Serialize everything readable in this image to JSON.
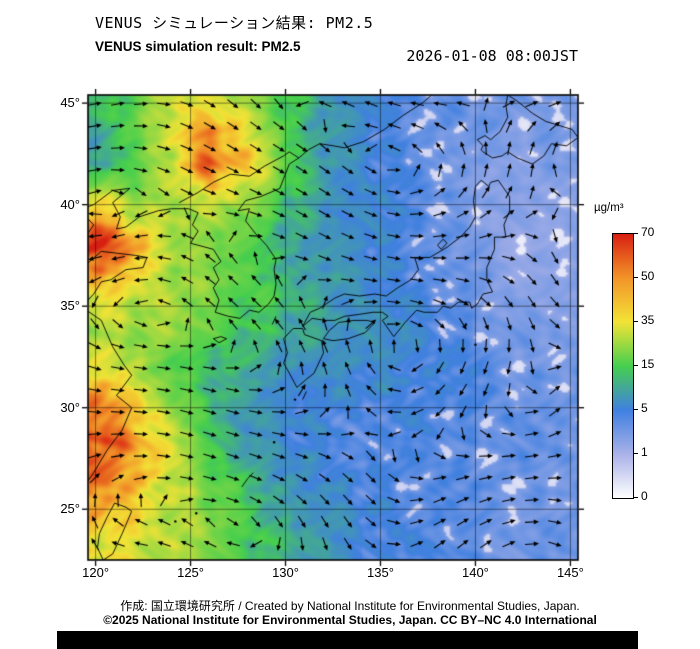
{
  "header": {
    "title_jp": "VENUS シミュレーション結果: PM2.5",
    "title_en": "VENUS simulation result: PM2.5",
    "timestamp": "2026-01-08 08:00JST"
  },
  "footer": {
    "credit": "作成: 国立環境研究所 / Created by National Institute for Environmental Studies, Japan.",
    "license": "©2025 National Institute for Environmental Studies, Japan. CC BY–NC 4.0 International"
  },
  "chart_data": {
    "type": "heatmap",
    "title": "VENUS simulation result: PM2.5",
    "variable": "PM2.5 concentration",
    "units": "µg/m³",
    "timestamp": "2026-01-08 08:00JST",
    "overlay": "wind vector arrows",
    "x_axis": {
      "label": "longitude",
      "ticks": [
        "120°",
        "125°",
        "130°",
        "135°",
        "140°",
        "145°"
      ],
      "tick_values": [
        120,
        125,
        130,
        135,
        140,
        145
      ],
      "range": [
        119.6,
        145.4
      ]
    },
    "y_axis": {
      "label": "latitude",
      "ticks": [
        "45°",
        "40°",
        "35°",
        "30°",
        "25°"
      ],
      "tick_values": [
        45,
        40,
        35,
        30,
        25
      ],
      "range": [
        22.5,
        45.4
      ]
    },
    "colorbar": {
      "label": "µg/m³",
      "tick_labels": [
        "0",
        "1",
        "5",
        "15",
        "35",
        "50",
        "70"
      ],
      "tick_values": [
        0,
        1,
        5,
        15,
        35,
        50,
        70
      ],
      "colors": [
        "#ffffff",
        "#a9b1e8",
        "#4080e0",
        "#46cf4e",
        "#f2e336",
        "#f29429",
        "#d81f12"
      ]
    },
    "grid": {
      "comment": "PM2.5 field (ug/m3) sampled on coarse grid; rows north-to-south",
      "lons": [
        120,
        122,
        124,
        126,
        128,
        130,
        132,
        134,
        136,
        138,
        140,
        142,
        144,
        146
      ],
      "lats": [
        46,
        44,
        42,
        40,
        38,
        36,
        34,
        32,
        30,
        28,
        26,
        24,
        22
      ],
      "values": [
        [
          14,
          18,
          28,
          30,
          22,
          14,
          9,
          6,
          4,
          3.5,
          3,
          3,
          3,
          3
        ],
        [
          10,
          16,
          34,
          48,
          30,
          16,
          9,
          6,
          4,
          3.5,
          3,
          2.5,
          3,
          3
        ],
        [
          9,
          14,
          30,
          58,
          40,
          18,
          9,
          6,
          4.5,
          3.5,
          2.5,
          2,
          2.5,
          3
        ],
        [
          38,
          26,
          24,
          32,
          24,
          13,
          8,
          6,
          4.5,
          3.5,
          2.5,
          2,
          2,
          2.5
        ],
        [
          68,
          45,
          28,
          22,
          16,
          11,
          8,
          6,
          5,
          3.5,
          2.5,
          1.5,
          2,
          2.5
        ],
        [
          40,
          32,
          26,
          22,
          16,
          13,
          9,
          7,
          5,
          4,
          3,
          2,
          2,
          2.5
        ],
        [
          28,
          26,
          24,
          20,
          14,
          11,
          9,
          8,
          6,
          4.5,
          3.5,
          2.5,
          2.5,
          2.5
        ],
        [
          30,
          26,
          18,
          12,
          10,
          8,
          7,
          6,
          6,
          5,
          4,
          3,
          3,
          3
        ],
        [
          55,
          40,
          24,
          12,
          8,
          6,
          5.5,
          5,
          5,
          4.5,
          4,
          3.5,
          3,
          3
        ],
        [
          65,
          52,
          30,
          15,
          9,
          6,
          5,
          4.5,
          4,
          4,
          3.5,
          3.5,
          3,
          3
        ],
        [
          48,
          42,
          32,
          20,
          13,
          9,
          6,
          5,
          4,
          3.5,
          3.5,
          3,
          3,
          3
        ],
        [
          38,
          34,
          28,
          22,
          15,
          11,
          8,
          6,
          5,
          4,
          3.5,
          3,
          3,
          3
        ],
        [
          32,
          30,
          26,
          20,
          15,
          11,
          8,
          6,
          5,
          4,
          3.5,
          3,
          3,
          3
        ]
      ]
    },
    "wind": {
      "style": "arrows",
      "color": "#000000"
    }
  }
}
